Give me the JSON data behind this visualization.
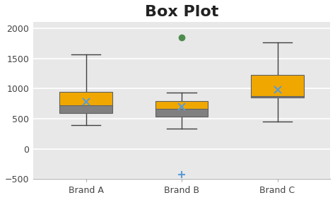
{
  "title": "Box Plot",
  "title_fontsize": 16,
  "title_fontweight": "bold",
  "categories": [
    "Brand A",
    "Brand B",
    "Brand C"
  ],
  "ylim": [
    -500,
    2100
  ],
  "yticks": [
    -500,
    0,
    500,
    1000,
    1500,
    2000
  ],
  "plot_bg_color": "#e8e8e8",
  "fig_bg_color": "#ffffff",
  "grid_color": "#ffffff",
  "box_color_lower": "#808080",
  "box_color_upper": "#f0a800",
  "box_edge_color": "#606060",
  "whisker_color": "#404040",
  "mean_marker_color": "#5b9bd5",
  "outlier_color": "#4e8c4e",
  "outlier_extra_color": "#5b9bd5",
  "boxes": [
    {
      "x": 0,
      "q1": 590,
      "median": 720,
      "q3": 940,
      "whisker_low": 390,
      "whisker_high": 1560,
      "mean": 780,
      "outliers": [],
      "extra_outliers": []
    },
    {
      "x": 1,
      "q1": 540,
      "median": 660,
      "q3": 790,
      "whisker_low": 330,
      "whisker_high": 930,
      "mean": 700,
      "outliers": [
        1840
      ],
      "extra_outliers": [
        -430
      ]
    },
    {
      "x": 2,
      "q1": 845,
      "median": 870,
      "q3": 1230,
      "whisker_low": 450,
      "whisker_high": 1760,
      "mean": 975,
      "outliers": [],
      "extra_outliers": []
    }
  ],
  "box_width": 0.55
}
